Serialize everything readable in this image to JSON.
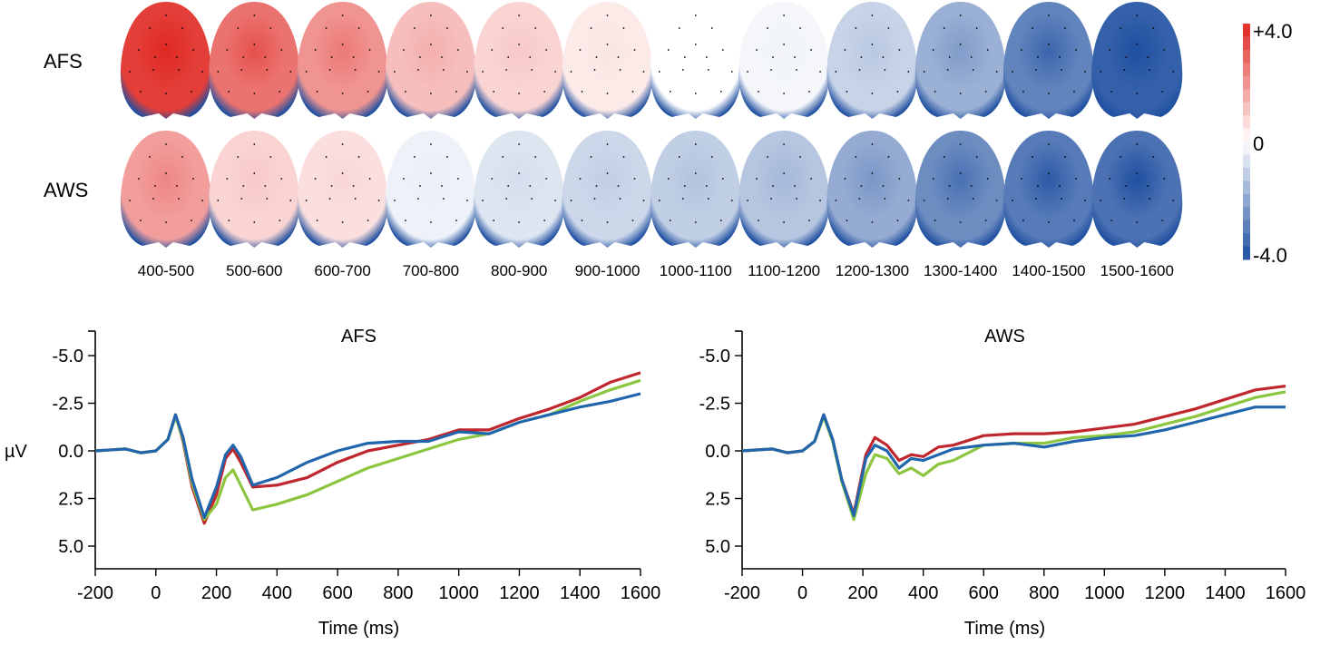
{
  "colors": {
    "positive": "#e02822",
    "neutral": "#ffffff",
    "negative": "#1f4fa0",
    "series": [
      "#c0262d",
      "#8cc63f",
      "#2166ac"
    ]
  },
  "topomaps": {
    "rows": [
      "AFS",
      "AWS"
    ],
    "windows": [
      "400-500",
      "500-600",
      "600-700",
      "700-800",
      "800-900",
      "900-1000",
      "1000-1100",
      "1100-1200",
      "1200-1300",
      "1300-1400",
      "1400-1500",
      "1500-1600"
    ],
    "values": {
      "AFS": [
        3.6,
        2.6,
        2.0,
        1.2,
        0.8,
        0.4,
        0.0,
        -0.2,
        -1.0,
        -1.8,
        -2.8,
        -3.6
      ],
      "AWS": [
        1.8,
        0.8,
        0.6,
        -0.3,
        -0.6,
        -0.9,
        -1.1,
        -1.3,
        -1.9,
        -2.6,
        -3.0,
        -3.2
      ]
    },
    "scale": {
      "max_label": "+4.0",
      "mid_label": "0",
      "min_label": "-4.0"
    }
  },
  "chart_data": [
    {
      "type": "line",
      "title": "AFS",
      "xlabel": "Time (ms)",
      "ylabel": "µV",
      "xlim": [
        -200,
        1600
      ],
      "ylim": [
        5.0,
        -5.0
      ],
      "y_inverted": true,
      "xticks": [
        "-200",
        "0",
        "200",
        "400",
        "600",
        "800",
        "1000",
        "1200",
        "1400",
        "1600"
      ],
      "yticks": [
        "-5.0",
        "-2.5",
        "0.0",
        "2.5",
        "5.0"
      ],
      "x": [
        -200,
        -100,
        -50,
        0,
        40,
        65,
        90,
        120,
        160,
        200,
        230,
        255,
        280,
        320,
        400,
        500,
        600,
        700,
        800,
        900,
        1000,
        1100,
        1200,
        1300,
        1400,
        1500,
        1600
      ],
      "series": [
        {
          "values": [
            0.0,
            -0.1,
            0.1,
            0.0,
            -0.6,
            -1.9,
            -0.5,
            1.9,
            3.8,
            2.3,
            0.4,
            -0.1,
            0.6,
            1.9,
            1.8,
            1.4,
            0.6,
            0.0,
            -0.3,
            -0.6,
            -1.1,
            -1.1,
            -1.7,
            -2.2,
            -2.8,
            -3.6,
            -4.1
          ]
        },
        {
          "values": [
            0.0,
            -0.1,
            0.1,
            0.0,
            -0.6,
            -1.8,
            -0.6,
            1.7,
            3.6,
            2.8,
            1.4,
            1.0,
            1.8,
            3.1,
            2.8,
            2.3,
            1.6,
            0.9,
            0.4,
            -0.1,
            -0.6,
            -0.9,
            -1.5,
            -1.9,
            -2.6,
            -3.2,
            -3.7
          ]
        },
        {
          "values": [
            0.0,
            -0.1,
            0.1,
            0.0,
            -0.6,
            -1.9,
            -0.7,
            1.5,
            3.5,
            1.9,
            0.2,
            -0.3,
            0.3,
            1.8,
            1.4,
            0.6,
            0.0,
            -0.4,
            -0.5,
            -0.5,
            -1.0,
            -0.9,
            -1.5,
            -1.9,
            -2.3,
            -2.6,
            -3.0
          ]
        }
      ]
    },
    {
      "type": "line",
      "title": "AWS",
      "xlabel": "Time (ms)",
      "ylabel": "",
      "xlim": [
        -200,
        1600
      ],
      "ylim": [
        5.0,
        -5.0
      ],
      "y_inverted": true,
      "xticks": [
        "-200",
        "0",
        "200",
        "400",
        "600",
        "800",
        "1000",
        "1200",
        "1400",
        "1600"
      ],
      "yticks": [
        "-5.0",
        "-2.5",
        "0.0",
        "2.5",
        "5.0"
      ],
      "x": [
        -200,
        -100,
        -50,
        0,
        40,
        70,
        100,
        130,
        170,
        210,
        240,
        280,
        320,
        360,
        400,
        450,
        500,
        600,
        700,
        800,
        900,
        1000,
        1100,
        1200,
        1300,
        1400,
        1500,
        1600
      ],
      "series": [
        {
          "values": [
            0.0,
            -0.1,
            0.1,
            0.0,
            -0.5,
            -1.9,
            -0.6,
            1.5,
            3.3,
            0.2,
            -0.7,
            -0.3,
            0.5,
            0.2,
            0.3,
            -0.2,
            -0.3,
            -0.8,
            -0.9,
            -0.9,
            -1.0,
            -1.2,
            -1.4,
            -1.8,
            -2.2,
            -2.7,
            -3.2,
            -3.4
          ]
        },
        {
          "values": [
            0.0,
            -0.1,
            0.1,
            0.0,
            -0.5,
            -1.8,
            -0.5,
            1.6,
            3.6,
            1.2,
            0.2,
            0.4,
            1.2,
            0.9,
            1.3,
            0.7,
            0.5,
            -0.3,
            -0.4,
            -0.4,
            -0.7,
            -0.8,
            -1.0,
            -1.4,
            -1.8,
            -2.3,
            -2.8,
            -3.1
          ]
        },
        {
          "values": [
            0.0,
            -0.1,
            0.1,
            0.0,
            -0.5,
            -1.9,
            -0.6,
            1.5,
            3.4,
            0.4,
            -0.3,
            0.0,
            0.9,
            0.4,
            0.5,
            0.2,
            -0.1,
            -0.3,
            -0.4,
            -0.2,
            -0.5,
            -0.7,
            -0.8,
            -1.1,
            -1.5,
            -1.9,
            -2.3,
            -2.3
          ]
        }
      ]
    }
  ]
}
